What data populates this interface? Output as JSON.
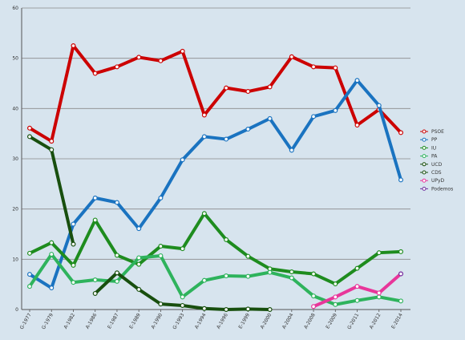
{
  "chart_data": {
    "type": "line",
    "categories": [
      "G-1977",
      "G-1979",
      "A-1982",
      "A-1986",
      "E-1987",
      "E-1989",
      "A-1990",
      "G-1993",
      "A-1994",
      "A-1996",
      "E-1999",
      "A-2000",
      "A-2004",
      "A-2008",
      "E-2009",
      "G-2011",
      "A-2012",
      "E-2014"
    ],
    "ylim": [
      0,
      60
    ],
    "yticks": [
      0,
      10,
      20,
      30,
      40,
      50,
      60
    ],
    "grid": true,
    "legend_position": "right",
    "series": [
      {
        "name": "PSOE",
        "color": "#cc0000",
        "values": [
          36.1,
          33.5,
          52.5,
          47.0,
          48.3,
          50.2,
          49.5,
          51.4,
          38.7,
          44.1,
          43.4,
          44.3,
          50.3,
          48.3,
          48.1,
          36.7,
          39.8,
          35.2
        ]
      },
      {
        "name": "PP",
        "color": "#1a73c0",
        "values": [
          7.0,
          4.3,
          17.0,
          22.2,
          21.3,
          16.1,
          22.2,
          29.8,
          34.4,
          33.9,
          35.9,
          38.0,
          31.7,
          38.4,
          39.6,
          45.6,
          40.6,
          25.8
        ]
      },
      {
        "name": "IU",
        "color": "#1e8c1e",
        "values": [
          11.2,
          13.3,
          8.8,
          17.8,
          10.8,
          9.0,
          12.6,
          12.1,
          19.1,
          13.9,
          10.6,
          8.1,
          7.5,
          7.1,
          5.1,
          8.2,
          11.3,
          11.5
        ]
      },
      {
        "name": "PA",
        "color": "#2eb35c",
        "values": [
          4.6,
          11.0,
          5.4,
          5.9,
          5.6,
          10.3,
          10.7,
          2.5,
          5.8,
          6.7,
          6.6,
          7.4,
          6.3,
          2.7,
          1.0,
          1.8,
          2.5,
          1.7
        ]
      },
      {
        "name": "UCD",
        "color": "#184f0e",
        "values": [
          34.4,
          31.8,
          13.0,
          null,
          null,
          null,
          null,
          null,
          null,
          null,
          null,
          null,
          null,
          null,
          null,
          null,
          null,
          null
        ]
      },
      {
        "name": "CDS",
        "color": "#184f0e",
        "values": [
          null,
          null,
          null,
          3.2,
          7.3,
          4.0,
          1.1,
          0.8,
          0.2,
          0.0,
          0.1,
          0.0,
          null,
          null,
          null,
          null,
          null,
          null
        ]
      },
      {
        "name": "UPyD",
        "color": "#e8369a",
        "values": [
          null,
          null,
          null,
          null,
          null,
          null,
          null,
          null,
          null,
          null,
          null,
          null,
          null,
          0.6,
          2.5,
          4.6,
          3.3,
          7.1
        ]
      },
      {
        "name": "Podemos",
        "color": "#6f2f9f",
        "values": [
          null,
          null,
          null,
          null,
          null,
          null,
          null,
          null,
          null,
          null,
          null,
          null,
          null,
          null,
          null,
          null,
          null,
          7.1
        ]
      }
    ]
  }
}
